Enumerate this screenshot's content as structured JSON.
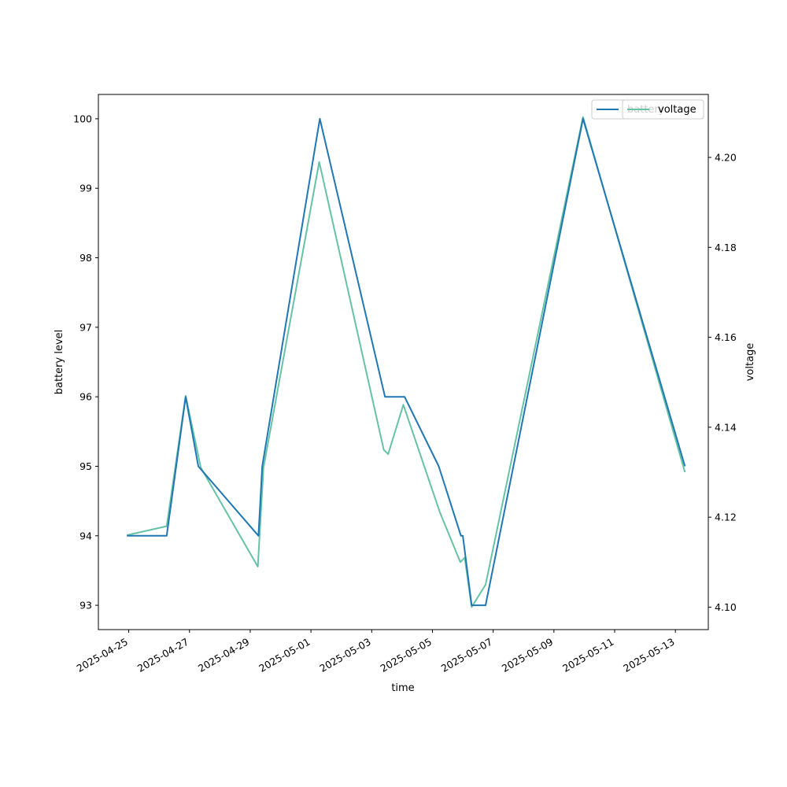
{
  "chart_data": {
    "type": "line",
    "xlabel": "time",
    "ylabel_left": "battery level",
    "ylabel_right": "voltage",
    "xlim": [
      "2025-04-24T00:00",
      "2025-05-14T02:00"
    ],
    "ylim_left": [
      92.65,
      100.35
    ],
    "ylim_right": [
      4.095,
      4.214
    ],
    "x_ticks": [
      "2025-04-25",
      "2025-04-27",
      "2025-04-29",
      "2025-05-01",
      "2025-05-03",
      "2025-05-05",
      "2025-05-07",
      "2025-05-09",
      "2025-05-11",
      "2025-05-13"
    ],
    "y_ticks_left": [
      93,
      94,
      95,
      96,
      97,
      98,
      99,
      100
    ],
    "y_ticks_right": [
      "4.10",
      "4.12",
      "4.14",
      "4.16",
      "4.18",
      "4.20"
    ],
    "legend": {
      "position": "top-right",
      "overlapping": true
    },
    "series": [
      {
        "name": "battery",
        "axis": "left",
        "color": "#1f77b4",
        "points": [
          [
            "2025-04-24T22:30",
            94.0
          ],
          [
            "2025-04-26T06:00",
            94.0
          ],
          [
            "2025-04-26T21:00",
            96.0
          ],
          [
            "2025-04-27T07:00",
            95.0
          ],
          [
            "2025-04-29T06:30",
            94.0
          ],
          [
            "2025-04-29T09:30",
            95.0
          ],
          [
            "2025-05-01T07:00",
            100.0
          ],
          [
            "2025-05-03T10:30",
            96.0
          ],
          [
            "2025-05-04T02:00",
            96.0
          ],
          [
            "2025-05-05T05:00",
            95.0
          ],
          [
            "2025-05-05T22:30",
            94.0
          ],
          [
            "2025-05-06T00:00",
            94.0
          ],
          [
            "2025-05-06T07:00",
            93.0
          ],
          [
            "2025-05-06T18:00",
            93.0
          ],
          [
            "2025-05-09T23:00",
            100.0
          ],
          [
            "2025-05-13T07:30",
            95.0
          ]
        ]
      },
      {
        "name": "voltage",
        "axis": "right",
        "color": "#66c2a5",
        "points": [
          [
            "2025-04-24T22:30",
            4.116
          ],
          [
            "2025-04-26T06:00",
            4.118
          ],
          [
            "2025-04-26T21:00",
            4.147
          ],
          [
            "2025-04-27T09:00",
            4.131
          ],
          [
            "2025-04-29T06:00",
            4.109
          ],
          [
            "2025-04-29T10:30",
            4.131
          ],
          [
            "2025-05-01T06:30",
            4.199
          ],
          [
            "2025-05-03T09:30",
            4.135
          ],
          [
            "2025-05-03T13:00",
            4.134
          ],
          [
            "2025-05-04T01:00",
            4.145
          ],
          [
            "2025-05-05T06:00",
            4.121
          ],
          [
            "2025-05-05T22:00",
            4.11
          ],
          [
            "2025-05-06T01:30",
            4.111
          ],
          [
            "2025-05-06T07:00",
            4.1
          ],
          [
            "2025-05-06T18:00",
            4.105
          ],
          [
            "2025-05-09T23:00",
            4.209
          ],
          [
            "2025-05-13T07:30",
            4.13
          ]
        ]
      }
    ]
  }
}
